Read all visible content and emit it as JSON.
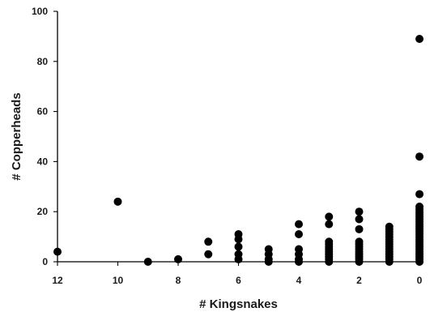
{
  "chart_data": {
    "type": "scatter",
    "title": "",
    "xlabel": "# Kingsnakes",
    "ylabel": "# Copperheads",
    "x_reversed": true,
    "xlim": [
      0,
      12
    ],
    "ylim": [
      0,
      100
    ],
    "x_ticks": [
      "12",
      "10",
      "8",
      "6",
      "4",
      "2",
      "0"
    ],
    "x_tick_values": [
      12,
      10,
      8,
      6,
      4,
      2,
      0
    ],
    "y_ticks": [
      "0",
      "20",
      "40",
      "60",
      "80",
      "100"
    ],
    "y_tick_values": [
      0,
      20,
      40,
      60,
      80,
      100
    ],
    "grid": false,
    "legend": "none",
    "marker_color": "#000000",
    "series": [
      {
        "points": [
          [
            12,
            4
          ],
          [
            10,
            24
          ],
          [
            9,
            0
          ],
          [
            8,
            1
          ],
          [
            7,
            8
          ],
          [
            7,
            3
          ],
          [
            6,
            11
          ],
          [
            6,
            9
          ],
          [
            6,
            6
          ],
          [
            6,
            3
          ],
          [
            6,
            1
          ],
          [
            5,
            5
          ],
          [
            5,
            3
          ],
          [
            5,
            1
          ],
          [
            5,
            0
          ],
          [
            4,
            15
          ],
          [
            4,
            11
          ],
          [
            4,
            5
          ],
          [
            4,
            3
          ],
          [
            4,
            1
          ],
          [
            4,
            0
          ],
          [
            3,
            18
          ],
          [
            3,
            15
          ],
          [
            3,
            8
          ],
          [
            3,
            7
          ],
          [
            3,
            6
          ],
          [
            3,
            5
          ],
          [
            3,
            4
          ],
          [
            3,
            3
          ],
          [
            3,
            2
          ],
          [
            3,
            1
          ],
          [
            3,
            0
          ],
          [
            2,
            20
          ],
          [
            2,
            17
          ],
          [
            2,
            13
          ],
          [
            2,
            8
          ],
          [
            2,
            7
          ],
          [
            2,
            6
          ],
          [
            2,
            5
          ],
          [
            2,
            4
          ],
          [
            2,
            3
          ],
          [
            2,
            2
          ],
          [
            2,
            1
          ],
          [
            2,
            0
          ],
          [
            1,
            14
          ],
          [
            1,
            13
          ],
          [
            1,
            12
          ],
          [
            1,
            11
          ],
          [
            1,
            10
          ],
          [
            1,
            9
          ],
          [
            1,
            8
          ],
          [
            1,
            7
          ],
          [
            1,
            6
          ],
          [
            1,
            5
          ],
          [
            1,
            4
          ],
          [
            1,
            3
          ],
          [
            1,
            2
          ],
          [
            1,
            1
          ],
          [
            1,
            0
          ],
          [
            0,
            89
          ],
          [
            0,
            42
          ],
          [
            0,
            27
          ],
          [
            0,
            22
          ],
          [
            0,
            21
          ],
          [
            0,
            20
          ],
          [
            0,
            19
          ],
          [
            0,
            18
          ],
          [
            0,
            17
          ],
          [
            0,
            16
          ],
          [
            0,
            15
          ],
          [
            0,
            14
          ],
          [
            0,
            13
          ],
          [
            0,
            12
          ],
          [
            0,
            11
          ],
          [
            0,
            10
          ],
          [
            0,
            9
          ],
          [
            0,
            8
          ],
          [
            0,
            7
          ],
          [
            0,
            6
          ],
          [
            0,
            5
          ],
          [
            0,
            4
          ],
          [
            0,
            3
          ],
          [
            0,
            2
          ],
          [
            0,
            1
          ],
          [
            0,
            0
          ]
        ]
      }
    ]
  }
}
